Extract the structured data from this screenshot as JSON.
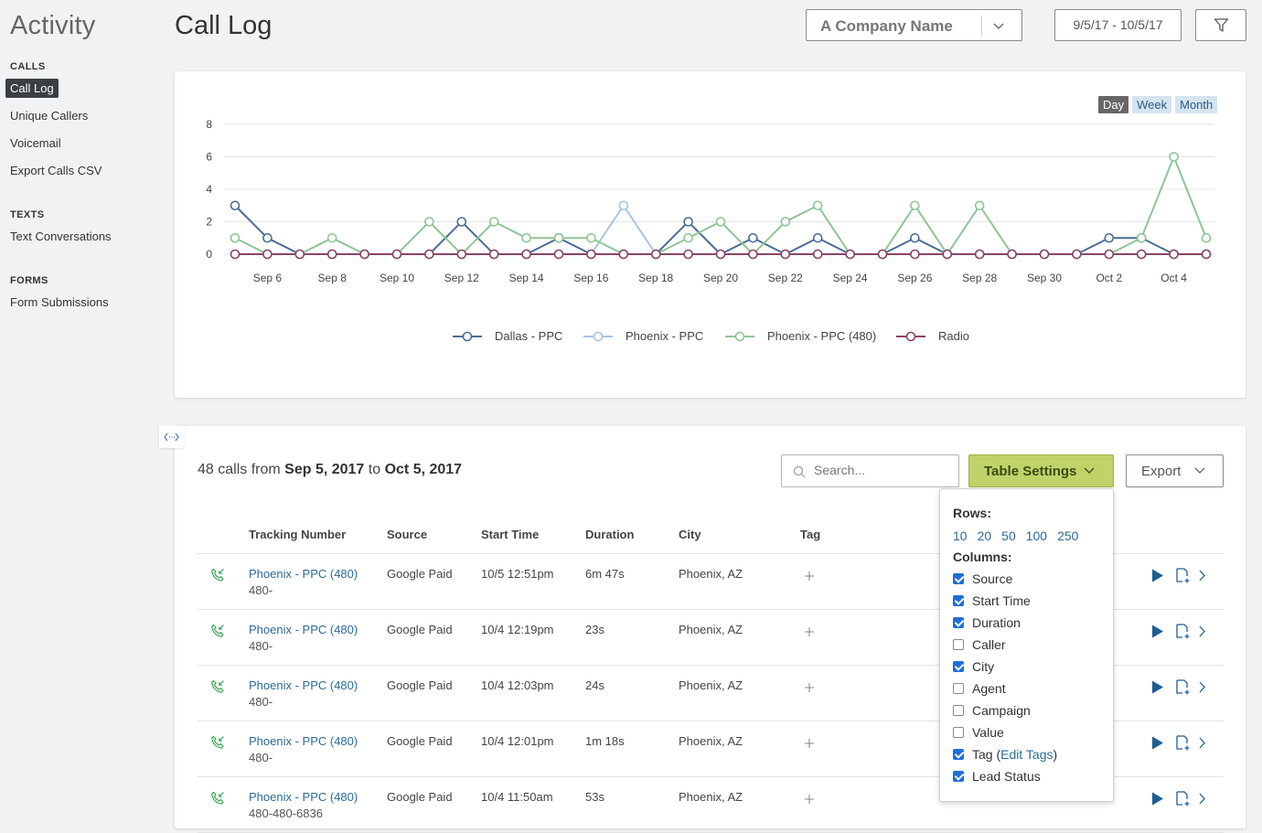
{
  "sidebar": {
    "title": "Activity",
    "sections": [
      {
        "heading": "CALLS",
        "items": [
          "Call Log",
          "Unique Callers",
          "Voicemail",
          "Export Calls CSV"
        ]
      },
      {
        "heading": "TEXTS",
        "items": [
          "Text Conversations"
        ]
      },
      {
        "heading": "FORMS",
        "items": [
          "Form Submissions"
        ]
      }
    ],
    "active_item": "Call Log"
  },
  "header": {
    "title": "Call Log",
    "company": "A Company Name",
    "date_range": "9/5/17 - 10/5/17"
  },
  "chart": {
    "range_buttons": [
      "Day",
      "Week",
      "Month"
    ],
    "active_range": "Day"
  },
  "chart_data": {
    "type": "line",
    "title": "",
    "xlabel": "",
    "ylabel": "",
    "ylim": [
      0,
      8
    ],
    "yticks": [
      0,
      2,
      4,
      6,
      8
    ],
    "grid": true,
    "legend": "bottom",
    "x": [
      "Sep 5",
      "Sep 6",
      "Sep 7",
      "Sep 8",
      "Sep 9",
      "Sep 10",
      "Sep 11",
      "Sep 12",
      "Sep 13",
      "Sep 14",
      "Sep 15",
      "Sep 16",
      "Sep 17",
      "Sep 18",
      "Sep 19",
      "Sep 20",
      "Sep 21",
      "Sep 22",
      "Sep 23",
      "Sep 24",
      "Sep 25",
      "Sep 26",
      "Sep 27",
      "Sep 28",
      "Sep 29",
      "Sep 30",
      "Oct 1",
      "Oct 2",
      "Oct 3",
      "Oct 4",
      "Oct 5"
    ],
    "xtick_labels": [
      "Sep 6",
      "Sep 8",
      "Sep 10",
      "Sep 12",
      "Sep 14",
      "Sep 16",
      "Sep 18",
      "Sep 20",
      "Sep 22",
      "Sep 24",
      "Sep 26",
      "Sep 28",
      "Sep 30",
      "Oct 2",
      "Oct 4"
    ],
    "series": [
      {
        "name": "Dallas - PPC",
        "color": "#4a6d96",
        "values": [
          3,
          1,
          0,
          0,
          0,
          0,
          0,
          2,
          0,
          0,
          1,
          0,
          0,
          0,
          2,
          0,
          1,
          0,
          1,
          0,
          0,
          1,
          0,
          0,
          0,
          0,
          0,
          1,
          1,
          0,
          0
        ]
      },
      {
        "name": "Phoenix - PPC",
        "color": "#a7c4de",
        "values": [
          0,
          0,
          0,
          0,
          0,
          0,
          0,
          0,
          0,
          0,
          0,
          0,
          3,
          0,
          0,
          0,
          0,
          0,
          0,
          0,
          0,
          0,
          0,
          0,
          0,
          0,
          0,
          0,
          0,
          0,
          0
        ]
      },
      {
        "name": "Phoenix - PPC (480)",
        "color": "#8dc595",
        "values": [
          1,
          0,
          0,
          1,
          0,
          0,
          2,
          0,
          2,
          1,
          1,
          1,
          0,
          0,
          1,
          2,
          0,
          2,
          3,
          0,
          0,
          3,
          0,
          3,
          0,
          0,
          0,
          0,
          1,
          6,
          1
        ]
      },
      {
        "name": "Radio",
        "color": "#8a4466",
        "values": [
          0,
          0,
          0,
          0,
          0,
          0,
          0,
          0,
          0,
          0,
          0,
          0,
          0,
          0,
          0,
          0,
          0,
          0,
          0,
          0,
          0,
          0,
          0,
          0,
          0,
          0,
          0,
          0,
          0,
          0,
          0
        ]
      }
    ]
  },
  "table": {
    "summary_count": "48 calls from",
    "summary_from": "Sep 5, 2017",
    "summary_to_word": "to",
    "summary_to": "Oct 5, 2017",
    "search_placeholder": "Search...",
    "settings_label": "Table Settings",
    "export_label": "Export",
    "columns": [
      "Tracking Number",
      "Source",
      "Start Time",
      "Duration",
      "City",
      "Tag"
    ],
    "rows": [
      {
        "tracking": "Phoenix - PPC (480)",
        "number": "480-",
        "source": "Google Paid",
        "start": "10/5 12:51pm",
        "duration": "6m 47s",
        "city": "Phoenix, AZ"
      },
      {
        "tracking": "Phoenix - PPC (480)",
        "number": "480-",
        "source": "Google Paid",
        "start": "10/4 12:19pm",
        "duration": "23s",
        "city": "Phoenix, AZ"
      },
      {
        "tracking": "Phoenix - PPC (480)",
        "number": "480-",
        "source": "Google Paid",
        "start": "10/4 12:03pm",
        "duration": "24s",
        "city": "Phoenix, AZ"
      },
      {
        "tracking": "Phoenix - PPC (480)",
        "number": "480-",
        "source": "Google Paid",
        "start": "10/4 12:01pm",
        "duration": "1m 18s",
        "city": "Phoenix, AZ"
      },
      {
        "tracking": "Phoenix - PPC (480)",
        "number": "480-480-6836",
        "source": "Google Paid",
        "start": "10/4 11:50am",
        "duration": "53s",
        "city": "Phoenix, AZ"
      }
    ]
  },
  "table_settings": {
    "rows_label": "Rows:",
    "row_options": [
      "10",
      "20",
      "50",
      "100",
      "250"
    ],
    "columns_label": "Columns:",
    "column_options": [
      {
        "label": "Source",
        "checked": true
      },
      {
        "label": "Start Time",
        "checked": true
      },
      {
        "label": "Duration",
        "checked": true
      },
      {
        "label": "Caller",
        "checked": false
      },
      {
        "label": "City",
        "checked": true
      },
      {
        "label": "Agent",
        "checked": false
      },
      {
        "label": "Campaign",
        "checked": false
      },
      {
        "label": "Value",
        "checked": false
      },
      {
        "label": "Tag",
        "checked": true,
        "link": "Edit Tags"
      },
      {
        "label": "Lead Status",
        "checked": true
      }
    ]
  }
}
